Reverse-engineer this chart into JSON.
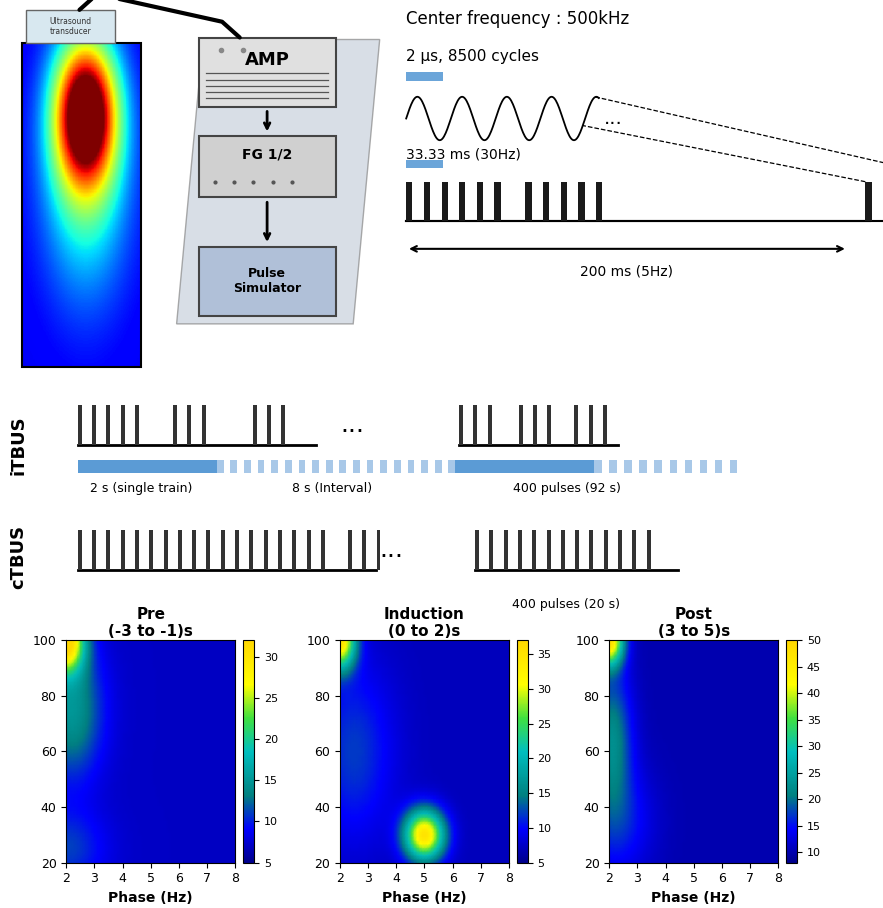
{
  "center_freq_text": "Center frequency : 500kHz",
  "pulse_text": "2 μs, 8500 cycles",
  "pulse_rep_text": "33.33 ms (30Hz)",
  "burst_text": "200 ms (5Hz)",
  "itbus_label": "iTBUS",
  "ctbus_label": "cTBUS",
  "heatmap_titles": [
    "Pre\n(-3 to -1)s",
    "Induction\n(0 to 2)s",
    "Post\n(3 to 5)s"
  ],
  "heatmap_clims": [
    [
      5,
      32
    ],
    [
      5,
      37
    ],
    [
      8,
      50
    ]
  ],
  "xlabel": "Phase (Hz)",
  "xrange": [
    2,
    8
  ],
  "yrange": [
    20,
    100
  ],
  "blue_solid": "#5B9BD5",
  "blue_dashed": "#A8C8E8"
}
